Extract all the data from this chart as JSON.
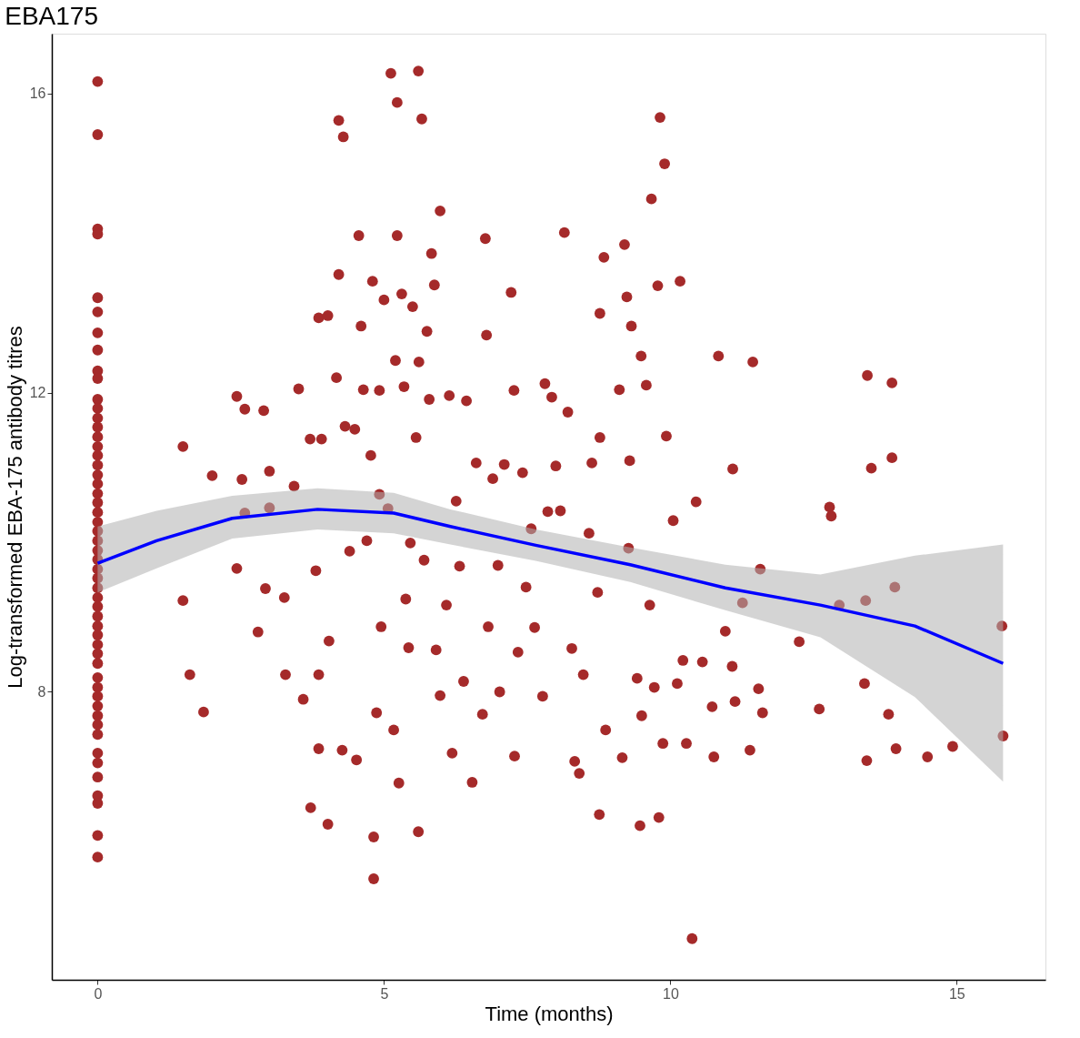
{
  "chart_data": {
    "type": "scatter",
    "title": "EBA175",
    "xlabel": "Time (months)",
    "ylabel": "Log-transformed  EBA-175 antibody titres",
    "xlim": [
      -0.8,
      16.55
    ],
    "ylim": [
      4.15,
      16.8
    ],
    "xticks": [
      0,
      5,
      10,
      15
    ],
    "yticks": [
      8,
      12,
      16
    ],
    "grid": false,
    "series": [
      {
        "color": "#a52a2a",
        "marker": "circle",
        "x": [
          0,
          0,
          0,
          0,
          0,
          0,
          0,
          0,
          0,
          0,
          0,
          0,
          0,
          0,
          0,
          0,
          0,
          0,
          0,
          0,
          0,
          0,
          0,
          0,
          0,
          0,
          0,
          0,
          0,
          0,
          0,
          0,
          0,
          0,
          0,
          0,
          0,
          0,
          0,
          0,
          0,
          0,
          0,
          0,
          0,
          0,
          0,
          0,
          0,
          0,
          0,
          0,
          0,
          1.49,
          1.49,
          1.61,
          1.85,
          2.0,
          2.43,
          2.43,
          2.52,
          2.57,
          2.57,
          2.8,
          2.9,
          2.93,
          3.0,
          3.0,
          3.26,
          3.28,
          3.43,
          3.51,
          3.59,
          3.71,
          3.72,
          3.81,
          3.86,
          3.86,
          3.86,
          3.91,
          4.02,
          4.02,
          4.04,
          4.17,
          4.21,
          4.21,
          4.27,
          4.29,
          4.32,
          4.4,
          4.49,
          4.52,
          4.56,
          4.6,
          4.64,
          4.7,
          4.77,
          4.8,
          4.82,
          4.82,
          4.87,
          4.92,
          4.92,
          4.95,
          5.0,
          5.07,
          5.12,
          5.17,
          5.2,
          5.23,
          5.23,
          5.26,
          5.31,
          5.35,
          5.38,
          5.43,
          5.46,
          5.5,
          5.56,
          5.6,
          5.6,
          5.61,
          5.66,
          5.7,
          5.75,
          5.79,
          5.83,
          5.88,
          5.91,
          5.98,
          5.98,
          6.09,
          6.14,
          6.19,
          6.26,
          6.32,
          6.39,
          6.44,
          6.54,
          6.61,
          6.72,
          6.77,
          6.79,
          6.82,
          6.9,
          6.99,
          7.02,
          7.1,
          7.22,
          7.27,
          7.28,
          7.34,
          7.42,
          7.48,
          7.57,
          7.63,
          7.77,
          7.81,
          7.86,
          7.93,
          8.0,
          8.08,
          8.15,
          8.21,
          8.28,
          8.33,
          8.41,
          8.48,
          8.58,
          8.63,
          8.73,
          8.76,
          8.77,
          8.77,
          8.84,
          8.87,
          9.11,
          9.16,
          9.2,
          9.24,
          9.27,
          9.29,
          9.32,
          9.42,
          9.47,
          9.49,
          9.5,
          9.58,
          9.64,
          9.67,
          9.72,
          9.78,
          9.8,
          9.82,
          9.87,
          9.9,
          9.93,
          10.05,
          10.12,
          10.17,
          10.22,
          10.28,
          10.38,
          10.45,
          10.56,
          10.73,
          10.76,
          10.84,
          10.96,
          11.08,
          11.09,
          11.13,
          11.26,
          11.39,
          11.44,
          11.54,
          11.57,
          11.61,
          12.25,
          12.6,
          12.78,
          12.81,
          12.95,
          13.39,
          13.41,
          13.43,
          13.44,
          13.51,
          13.81,
          13.87,
          13.87,
          13.92,
          13.94,
          14.49,
          14.93,
          15.79,
          15.81
        ],
        "values": [
          16.16,
          15.45,
          14.19,
          14.12,
          13.27,
          13.08,
          12.8,
          12.57,
          12.29,
          12.19,
          11.91,
          11.79,
          11.66,
          11.54,
          11.41,
          11.28,
          11.16,
          11.03,
          10.9,
          10.78,
          10.65,
          10.53,
          10.4,
          10.27,
          10.15,
          10.02,
          9.89,
          9.77,
          9.64,
          9.52,
          9.39,
          9.26,
          9.14,
          9.01,
          8.88,
          8.76,
          8.63,
          8.51,
          8.38,
          8.19,
          8.06,
          7.94,
          7.81,
          7.68,
          7.56,
          7.43,
          7.18,
          7.05,
          6.86,
          6.61,
          6.51,
          6.08,
          5.79,
          11.28,
          9.22,
          8.23,
          7.73,
          10.89,
          11.95,
          9.65,
          10.84,
          11.78,
          10.39,
          8.8,
          11.76,
          9.38,
          10.95,
          10.46,
          9.26,
          8.23,
          10.75,
          12.05,
          7.9,
          11.38,
          6.45,
          9.62,
          13.0,
          8.23,
          7.24,
          11.38,
          13.03,
          6.23,
          8.68,
          12.2,
          13.58,
          15.64,
          7.22,
          15.42,
          11.55,
          9.88,
          11.51,
          7.09,
          14.1,
          12.89,
          12.04,
          10.02,
          11.16,
          13.49,
          6.06,
          5.5,
          7.72,
          12.03,
          10.64,
          8.87,
          13.24,
          10.45,
          16.27,
          7.49,
          12.43,
          14.1,
          15.88,
          6.78,
          13.32,
          12.08,
          9.24,
          8.59,
          9.99,
          13.15,
          11.4,
          16.3,
          6.13,
          12.41,
          15.66,
          9.76,
          12.82,
          11.91,
          13.86,
          13.44,
          8.56,
          14.43,
          7.95,
          9.16,
          11.96,
          7.18,
          10.55,
          9.68,
          8.14,
          11.89,
          6.79,
          11.06,
          7.7,
          14.06,
          12.77,
          8.87,
          10.85,
          9.69,
          8.0,
          11.04,
          13.34,
          12.03,
          7.14,
          8.53,
          10.93,
          9.4,
          10.18,
          8.86,
          7.94,
          12.12,
          10.41,
          11.94,
          11.02,
          10.42,
          14.14,
          11.74,
          8.58,
          7.07,
          6.91,
          8.23,
          10.12,
          11.06,
          9.33,
          6.36,
          11.4,
          13.06,
          13.81,
          7.49,
          12.04,
          7.12,
          13.98,
          13.28,
          9.92,
          11.09,
          12.89,
          8.18,
          6.21,
          12.49,
          7.68,
          12.1,
          9.16,
          14.59,
          8.06,
          13.43,
          6.32,
          15.68,
          7.31,
          15.06,
          11.42,
          10.29,
          8.11,
          13.49,
          8.42,
          7.31,
          4.7,
          10.54,
          8.4,
          7.8,
          7.13,
          12.49,
          8.81,
          8.34,
          10.98,
          7.87,
          9.19,
          7.22,
          12.41,
          8.04,
          9.64,
          7.72,
          8.67,
          7.77,
          10.47,
          10.35,
          9.16,
          8.11,
          9.22,
          7.08,
          12.23,
          10.99,
          7.7,
          12.13,
          11.13,
          9.4,
          7.24,
          7.13,
          7.27,
          8.88,
          7.41
        ]
      },
      {
        "type": "line",
        "color": "#0000ff",
        "line_style": "solid",
        "x": [
          0,
          1.03,
          2.35,
          3.84,
          5.17,
          6.16,
          7.65,
          9.3,
          10.96,
          12.62,
          14.27,
          15.81
        ],
        "values": [
          9.72,
          10.02,
          10.32,
          10.44,
          10.39,
          10.21,
          9.96,
          9.7,
          9.39,
          9.16,
          8.88,
          8.38
        ],
        "lower": [
          9.33,
          9.65,
          10.05,
          10.17,
          10.12,
          9.97,
          9.75,
          9.47,
          9.09,
          8.73,
          7.93,
          6.8
        ],
        "upper": [
          10.21,
          10.42,
          10.62,
          10.72,
          10.66,
          10.44,
          10.17,
          9.93,
          9.7,
          9.57,
          9.82,
          9.97
        ]
      }
    ]
  }
}
